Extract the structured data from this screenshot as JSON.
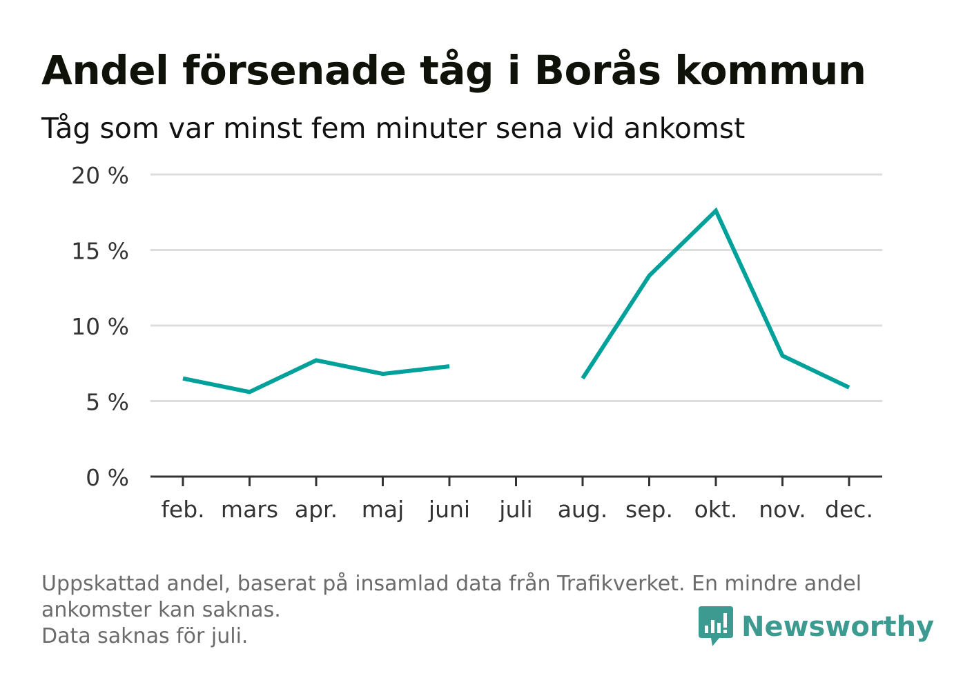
{
  "title": "Andel försenade tåg i Borås kommun",
  "subtitle": "Tåg som var minst fem minuter sena vid ankomst",
  "footnote": {
    "line1": "Uppskattad andel, baserat på insamlad data från Trafikverket. En mindre andel",
    "line2": "ankomster kan saknas.",
    "line3": "Data saknas för juli."
  },
  "brand": {
    "name": "Newsworthy",
    "icon": "bar-chart-speech-icon",
    "color": "#3c9a90"
  },
  "colors": {
    "line": "#00a19a",
    "grid": "#dddddd",
    "axis": "#333333"
  },
  "chart_data": {
    "type": "line",
    "categories": [
      "feb.",
      "mars",
      "apr.",
      "maj",
      "juni",
      "juli",
      "aug.",
      "sep.",
      "okt.",
      "nov.",
      "dec."
    ],
    "values": [
      6.5,
      5.6,
      7.7,
      6.8,
      7.3,
      null,
      6.5,
      13.3,
      17.6,
      8.0,
      5.9
    ],
    "yticks": [
      "0 %",
      "5 %",
      "10 %",
      "15 %",
      "20 %"
    ],
    "ylim": [
      0,
      20
    ],
    "grid": true,
    "legend": "none"
  }
}
